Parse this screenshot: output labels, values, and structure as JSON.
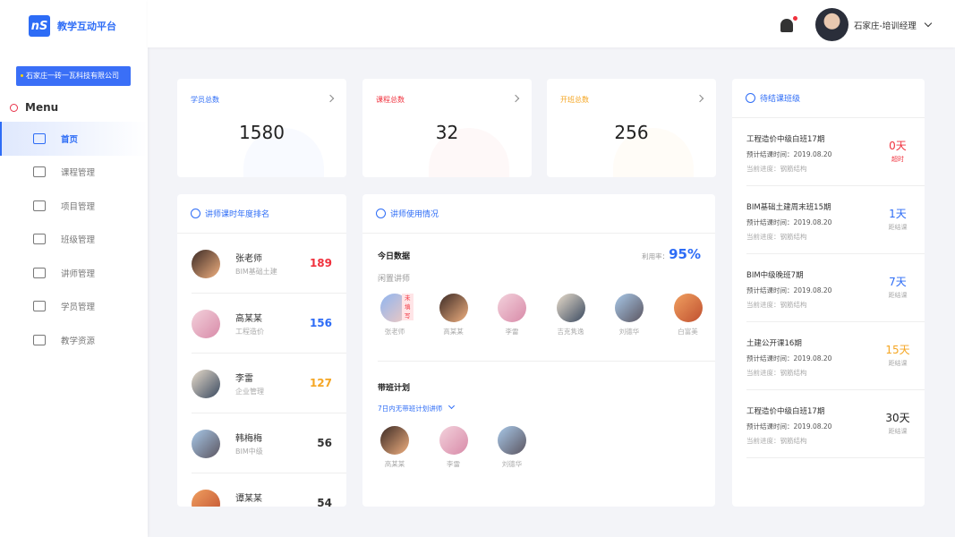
{
  "app": {
    "logo_mark": "nS",
    "title": "教学互动平台",
    "company": "石家庄一砖一瓦科技有限公司",
    "menu_label": "Menu"
  },
  "sidebar": {
    "items": [
      {
        "label": "首页",
        "icon": "home-icon",
        "active": true
      },
      {
        "label": "课程管理",
        "icon": "presentation-icon"
      },
      {
        "label": "项目管理",
        "icon": "folder-icon"
      },
      {
        "label": "班级管理",
        "icon": "class-icon"
      },
      {
        "label": "讲师管理",
        "icon": "teacher-icon"
      },
      {
        "label": "学员管理",
        "icon": "student-icon"
      },
      {
        "label": "教学资源",
        "icon": "book-icon"
      }
    ]
  },
  "header": {
    "user": "石家庄-培训经理",
    "notification": true
  },
  "stats": [
    {
      "label": "学员总数",
      "value": "1580",
      "color": "#2d6cf6"
    },
    {
      "label": "课程总数",
      "value": "32",
      "color": "#f0313d"
    },
    {
      "label": "开班总数",
      "value": "256",
      "color": "#f5a623"
    }
  ],
  "ranking": {
    "title": "讲师课时年度排名",
    "rows": [
      {
        "name": "张老师",
        "sub": "BIM基础土建",
        "value": "189",
        "color": "#f0313d"
      },
      {
        "name": "高某某",
        "sub": "工程造价",
        "value": "156",
        "color": "#2d6cf6"
      },
      {
        "name": "李雷",
        "sub": "企业管理",
        "value": "127",
        "color": "#f5a623"
      },
      {
        "name": "韩梅梅",
        "sub": "BIM中级",
        "value": "56",
        "color": "#333333"
      },
      {
        "name": "谭某某",
        "sub": "",
        "value": "54",
        "color": "#333333"
      }
    ]
  },
  "usage": {
    "title": "讲师使用情况",
    "today": "今日数据",
    "rate_label": "利用率：",
    "rate": "95%",
    "idle_label": "闲置讲师",
    "idle": [
      {
        "name": "张老师",
        "tag": "未填写"
      },
      {
        "name": "高某某"
      },
      {
        "name": "李雷"
      },
      {
        "name": "吉克隽逸"
      },
      {
        "name": "刘德华"
      },
      {
        "name": "白富美"
      }
    ],
    "plan_title": "带班计划",
    "plan_filter": "7日内无带班计划讲师",
    "plan": [
      {
        "name": "高某某"
      },
      {
        "name": "李雷"
      },
      {
        "name": "刘德华"
      }
    ]
  },
  "pending": {
    "title": "待结课班级",
    "rows": [
      {
        "name": "工程造价中级白班17期",
        "time": "预计结课时间：2019.08.20",
        "progress": "当前进度：钢筋结构",
        "days": "0天",
        "note": "超时",
        "color": "#f0313d"
      },
      {
        "name": "BIM基础土建周末班15期",
        "time": "预计结课时间：2019.08.20",
        "progress": "当前进度：钢筋结构",
        "days": "1天",
        "note": "距结课",
        "color": "#2d6cf6"
      },
      {
        "name": "BIM中级晚班7期",
        "time": "预计结课时间：2019.08.20",
        "progress": "当前进度：钢筋结构",
        "days": "7天",
        "note": "距结课",
        "color": "#2d6cf6"
      },
      {
        "name": "土建公开课16期",
        "time": "预计结课时间：2019.08.20",
        "progress": "当前进度：钢筋结构",
        "days": "15天",
        "note": "距结课",
        "color": "#f5a623"
      },
      {
        "name": "工程造价中级白班17期",
        "time": "预计结课时间：2019.08.20",
        "progress": "当前进度：钢筋结构",
        "days": "30天",
        "note": "距结课",
        "color": "#222222"
      }
    ]
  }
}
